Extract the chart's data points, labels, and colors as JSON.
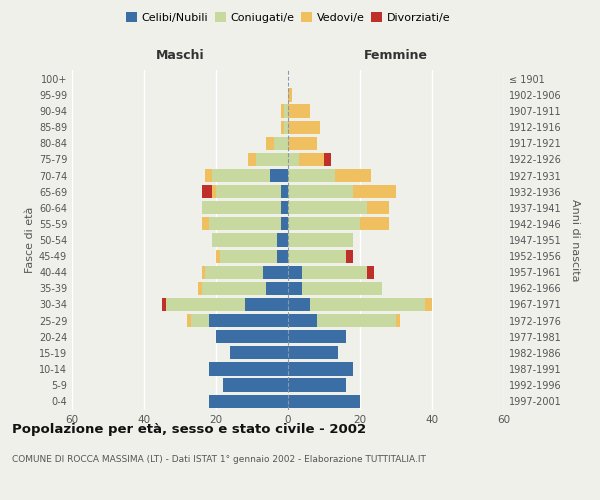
{
  "age_groups": [
    "0-4",
    "5-9",
    "10-14",
    "15-19",
    "20-24",
    "25-29",
    "30-34",
    "35-39",
    "40-44",
    "45-49",
    "50-54",
    "55-59",
    "60-64",
    "65-69",
    "70-74",
    "75-79",
    "80-84",
    "85-89",
    "90-94",
    "95-99",
    "100+"
  ],
  "birth_years": [
    "1997-2001",
    "1992-1996",
    "1987-1991",
    "1982-1986",
    "1977-1981",
    "1972-1976",
    "1967-1971",
    "1962-1966",
    "1957-1961",
    "1952-1956",
    "1947-1951",
    "1942-1946",
    "1937-1941",
    "1932-1936",
    "1927-1931",
    "1922-1926",
    "1917-1921",
    "1912-1916",
    "1907-1911",
    "1902-1906",
    "≤ 1901"
  ],
  "maschi": {
    "celibi": [
      22,
      18,
      22,
      16,
      20,
      22,
      12,
      6,
      7,
      3,
      3,
      2,
      2,
      2,
      5,
      0,
      0,
      0,
      0,
      0,
      0
    ],
    "coniugati": [
      0,
      0,
      0,
      0,
      0,
      5,
      22,
      18,
      16,
      16,
      18,
      20,
      22,
      18,
      16,
      9,
      4,
      1,
      1,
      0,
      0
    ],
    "vedovi": [
      0,
      0,
      0,
      0,
      0,
      1,
      0,
      1,
      1,
      1,
      0,
      2,
      0,
      1,
      2,
      2,
      2,
      1,
      1,
      0,
      0
    ],
    "divorziati": [
      0,
      0,
      0,
      0,
      0,
      0,
      1,
      0,
      0,
      0,
      0,
      0,
      0,
      3,
      0,
      0,
      0,
      0,
      0,
      0,
      0
    ]
  },
  "femmine": {
    "nubili": [
      20,
      16,
      18,
      14,
      16,
      8,
      6,
      4,
      4,
      0,
      0,
      0,
      0,
      0,
      0,
      0,
      0,
      0,
      0,
      0,
      0
    ],
    "coniugate": [
      0,
      0,
      0,
      0,
      0,
      22,
      32,
      22,
      18,
      16,
      18,
      20,
      22,
      18,
      13,
      3,
      0,
      0,
      0,
      0,
      0
    ],
    "vedove": [
      0,
      0,
      0,
      0,
      0,
      1,
      2,
      0,
      0,
      0,
      0,
      8,
      6,
      12,
      10,
      7,
      8,
      9,
      6,
      1,
      0
    ],
    "divorziate": [
      0,
      0,
      0,
      0,
      0,
      0,
      0,
      0,
      2,
      2,
      0,
      0,
      0,
      0,
      0,
      2,
      0,
      0,
      0,
      0,
      0
    ]
  },
  "colors": {
    "celibi": "#3a6ea5",
    "coniugati": "#c8d9a0",
    "vedovi": "#f0c060",
    "divorziati": "#c0302a"
  },
  "xlim": 60,
  "title": "Popolazione per età, sesso e stato civile - 2002",
  "subtitle": "COMUNE DI ROCCA MASSIMA (LT) - Dati ISTAT 1° gennaio 2002 - Elaborazione TUTTITALIA.IT",
  "ylabel_left": "Fasce di età",
  "ylabel_right": "Anni di nascita",
  "header_left": "Maschi",
  "header_right": "Femmine",
  "background_color": "#f0f0eb",
  "grid_color": "#ffffff"
}
